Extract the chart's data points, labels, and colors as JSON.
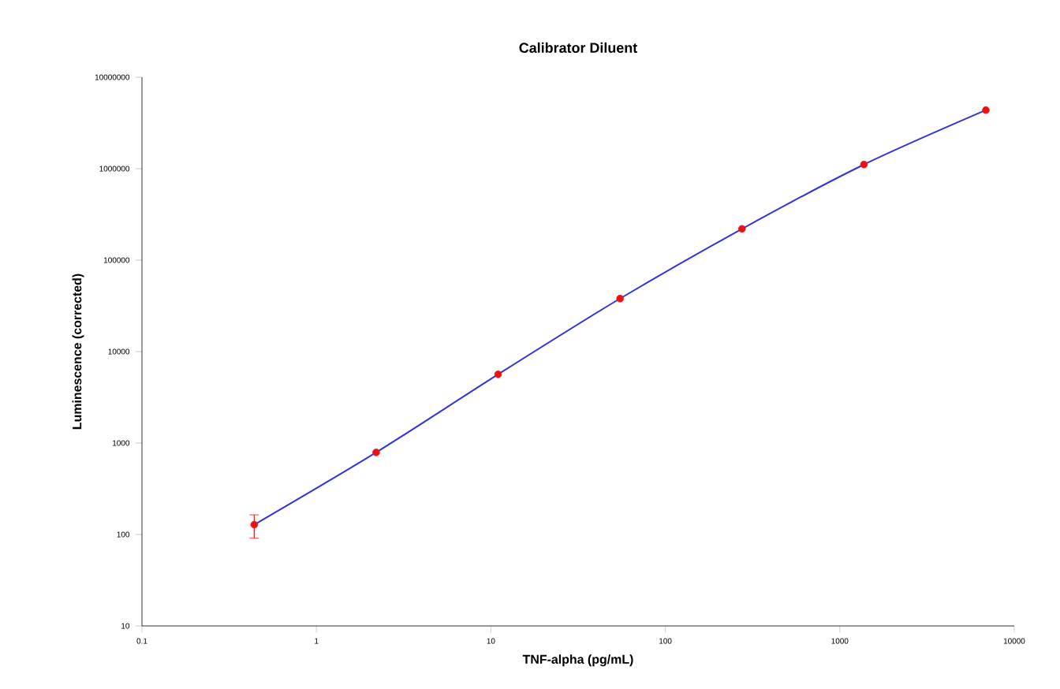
{
  "chart_data": {
    "type": "scatter",
    "title": "Calibrator Diluent",
    "xlabel": "TNF-alpha (pg/mL)",
    "ylabel": "Luminescence (corrected)",
    "log": "xy",
    "xlim": [
      0.1,
      10000
    ],
    "ylim": [
      10,
      10000000
    ],
    "xticks": [
      0.1,
      1,
      10,
      100,
      1000,
      10000
    ],
    "yticks": [
      10,
      100,
      1000,
      10000,
      100000,
      1000000,
      10000000
    ],
    "grid": false,
    "series": [
      {
        "type": "line",
        "color": "#3333dd",
        "marker": "none",
        "line_style": "solid",
        "x": [
          0.44,
          2.2,
          11,
          55,
          275,
          1375,
          6875
        ],
        "values": [
          128,
          790,
          5640,
          38000,
          220000,
          1110000,
          4370000
        ]
      },
      {
        "color": "#ee1111",
        "marker": "circle",
        "x": [
          0.44,
          2.2,
          11,
          55,
          275,
          1375,
          6875
        ],
        "values": [
          128,
          790,
          5640,
          38000,
          220000,
          1110000,
          4370000
        ],
        "errors": [
          [
            91,
            164
          ],
          null,
          null,
          null,
          null,
          null,
          null
        ]
      }
    ]
  }
}
